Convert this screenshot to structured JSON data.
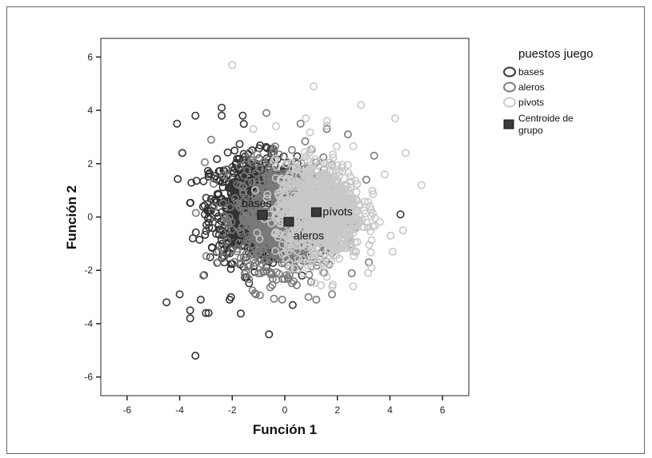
{
  "chart_data": {
    "type": "scatter",
    "xlabel": "Función 1",
    "ylabel": "Función 2",
    "xlim": [
      -7,
      7
    ],
    "ylim": [
      -6.7,
      6.7
    ],
    "x_ticks": [
      "-6",
      "-4",
      "-2",
      "0",
      "2",
      "4",
      "6"
    ],
    "y_ticks": [
      "6",
      "4",
      "2",
      "0",
      "-2",
      "-4",
      "-6"
    ],
    "grid": false,
    "legend_position": "right",
    "legend": {
      "title": "puestos juego",
      "entries": [
        {
          "label": "bases",
          "color": "#333333",
          "marker": "open-circle"
        },
        {
          "label": "aleros",
          "color": "#7a7a7a",
          "marker": "open-circle"
        },
        {
          "label": "pívots",
          "color": "#c8c8c8",
          "marker": "open-circle"
        },
        {
          "label": "Centroide de grupo",
          "label_lines": [
            "Centroide de",
            "grupo"
          ],
          "color": "#3a3a3a",
          "marker": "filled-square"
        }
      ]
    },
    "series": [
      {
        "name": "bases",
        "color": "#333333",
        "distribution": {
          "center": [
            -1.2,
            0.3
          ],
          "spread": [
            1.1,
            1.3
          ],
          "count": 900
        },
        "points": [
          [
            -2.4,
            4.1
          ],
          [
            -2.4,
            3.8
          ],
          [
            -1.6,
            3.8
          ],
          [
            -4.1,
            3.5
          ],
          [
            -3.4,
            3.8
          ],
          [
            -3.9,
            2.4
          ],
          [
            -4.5,
            -3.2
          ],
          [
            -4.0,
            -2.9
          ],
          [
            -3.6,
            -3.5
          ],
          [
            -3.6,
            -3.8
          ],
          [
            -3.2,
            -3.1
          ],
          [
            -3.0,
            -3.6
          ],
          [
            -2.9,
            -3.6
          ],
          [
            -3.4,
            -5.2
          ],
          [
            -0.6,
            -4.4
          ],
          [
            0.3,
            -3.3
          ],
          [
            4.4,
            0.1
          ],
          [
            -2.9,
            1.6
          ],
          [
            -3.5,
            -0.8
          ],
          [
            -2.1,
            -3.1
          ]
        ]
      },
      {
        "name": "aleros",
        "color": "#7a7a7a",
        "distribution": {
          "center": [
            0.0,
            0.0
          ],
          "spread": [
            1.2,
            1.3
          ],
          "count": 1100
        },
        "points": [
          [
            -0.7,
            3.9
          ],
          [
            0.6,
            3.5
          ],
          [
            1.6,
            3.3
          ],
          [
            2.4,
            3.1
          ],
          [
            -2.8,
            2.9
          ],
          [
            3.4,
            2.3
          ],
          [
            3.2,
            -1.7
          ],
          [
            1.8,
            -2.9
          ],
          [
            1.2,
            -3.1
          ],
          [
            0.9,
            -3.0
          ],
          [
            -1.1,
            -2.9
          ],
          [
            -0.1,
            -3.1
          ],
          [
            -3.1,
            -2.2
          ],
          [
            3.1,
            1.4
          ]
        ]
      },
      {
        "name": "pívots",
        "color": "#c8c8c8",
        "distribution": {
          "center": [
            1.3,
            0.2
          ],
          "spread": [
            1.1,
            1.2
          ],
          "count": 1000
        },
        "points": [
          [
            -2.0,
            5.7
          ],
          [
            1.1,
            4.9
          ],
          [
            2.9,
            4.2
          ],
          [
            4.2,
            3.7
          ],
          [
            4.6,
            2.4
          ],
          [
            5.2,
            1.2
          ],
          [
            4.1,
            -1.3
          ],
          [
            3.3,
            -1.9
          ],
          [
            2.6,
            -2.6
          ],
          [
            1.6,
            3.6
          ],
          [
            3.8,
            1.6
          ],
          [
            4.5,
            -0.5
          ],
          [
            -1.2,
            3.3
          ],
          [
            0.8,
            3.7
          ]
        ]
      }
    ],
    "centroids": [
      {
        "label": "bases",
        "x": -0.85,
        "y": 0.08
      },
      {
        "label": "aleros",
        "x": 0.15,
        "y": -0.18
      },
      {
        "label": "pívots",
        "x": 1.2,
        "y": 0.18
      }
    ]
  }
}
